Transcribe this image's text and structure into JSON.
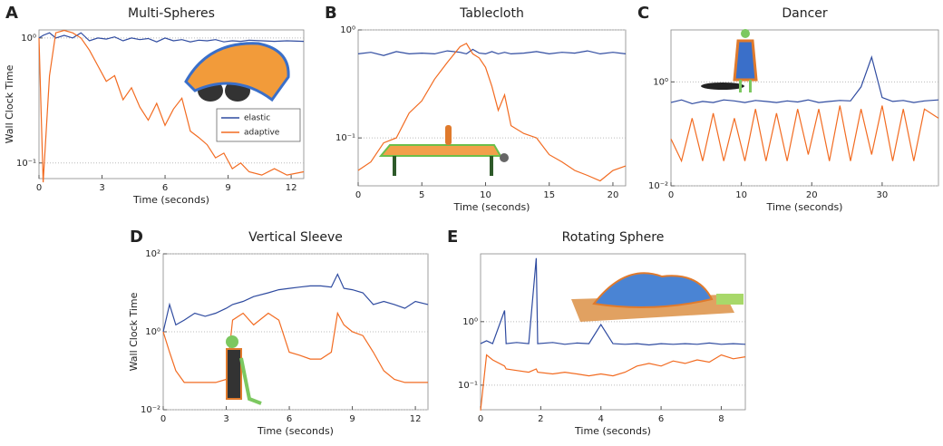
{
  "chart_data": [
    {
      "type": "line",
      "panel": "A",
      "title": "Multi-Spheres",
      "x_label": "Time (seconds)",
      "y_label": "Wall Clock Time",
      "log_y": true,
      "grid": true,
      "legend": "right",
      "xlim": [
        0,
        12.6
      ],
      "xticks": [
        0,
        3,
        6,
        9,
        12
      ],
      "ylim": [
        0.075,
        1.16
      ],
      "yticks": [
        {
          "value": 0.1,
          "label": "10⁻¹"
        },
        {
          "value": 1,
          "label": "10⁰"
        }
      ],
      "x": [
        0,
        0.2,
        0.5,
        0.8,
        1.2,
        1.6,
        2,
        2.4,
        2.8,
        3.2,
        3.6,
        4,
        4.4,
        4.8,
        5.2,
        5.6,
        6,
        6.4,
        6.8,
        7.2,
        7.6,
        8,
        8.4,
        8.8,
        9.2,
        9.6,
        10,
        10.6,
        11.2,
        11.8,
        12.6
      ],
      "series": [
        {
          "name": "elastic",
          "color": "#2f4ba0",
          "values": [
            1.0,
            1.05,
            1.1,
            1.0,
            1.05,
            1.0,
            1.1,
            0.95,
            1.0,
            0.98,
            1.02,
            0.95,
            1.0,
            0.97,
            0.99,
            0.93,
            1.0,
            0.95,
            0.97,
            0.93,
            0.96,
            0.95,
            0.97,
            0.93,
            0.95,
            0.94,
            0.96,
            0.95,
            0.94,
            0.95,
            0.94
          ]
        },
        {
          "name": "adaptive",
          "color": "#f26b21",
          "values": [
            1.0,
            0.07,
            0.5,
            1.1,
            1.15,
            1.1,
            1.0,
            0.8,
            0.6,
            0.45,
            0.5,
            0.32,
            0.4,
            0.28,
            0.22,
            0.3,
            0.2,
            0.27,
            0.33,
            0.18,
            0.16,
            0.14,
            0.11,
            0.12,
            0.09,
            0.1,
            0.085,
            0.08,
            0.09,
            0.08,
            0.085
          ]
        }
      ]
    },
    {
      "type": "line",
      "panel": "B",
      "title": "Tablecloth",
      "x_label": "Time (seconds)",
      "log_y": true,
      "grid": true,
      "xlim": [
        0,
        21
      ],
      "xticks": [
        0,
        5,
        10,
        15,
        20
      ],
      "ylim": [
        0.036,
        1
      ],
      "yticks": [
        {
          "value": 0.1,
          "label": "10⁻¹"
        },
        {
          "value": 1,
          "label": "10⁰"
        }
      ],
      "x": [
        0,
        1,
        2,
        3,
        4,
        5,
        6,
        7,
        8,
        8.5,
        9,
        9.5,
        10,
        10.5,
        11,
        11.5,
        12,
        13,
        14,
        15,
        16,
        17,
        18,
        19,
        20,
        21
      ],
      "series": [
        {
          "color": "#2f4ba0",
          "values": [
            0.6,
            0.62,
            0.58,
            0.63,
            0.6,
            0.61,
            0.6,
            0.64,
            0.62,
            0.6,
            0.66,
            0.61,
            0.6,
            0.63,
            0.6,
            0.62,
            0.6,
            0.61,
            0.63,
            0.6,
            0.62,
            0.61,
            0.64,
            0.6,
            0.62,
            0.6
          ]
        },
        {
          "color": "#f26b21",
          "values": [
            0.05,
            0.06,
            0.09,
            0.1,
            0.17,
            0.22,
            0.35,
            0.5,
            0.7,
            0.75,
            0.6,
            0.55,
            0.45,
            0.3,
            0.18,
            0.25,
            0.13,
            0.11,
            0.1,
            0.07,
            0.06,
            0.05,
            0.045,
            0.04,
            0.05,
            0.055
          ]
        }
      ]
    },
    {
      "type": "line",
      "panel": "C",
      "title": "Dancer",
      "x_label": "Time (seconds)",
      "log_y": true,
      "grid": true,
      "xlim": [
        0,
        38
      ],
      "xticks": [
        0,
        10,
        20,
        30
      ],
      "ylim": [
        0.01,
        10
      ],
      "yticks": [
        {
          "value": 0.01,
          "label": "10⁻²"
        },
        {
          "value": 1,
          "label": "10⁰"
        }
      ],
      "x": [
        0,
        1.5,
        3,
        4.5,
        6,
        7.5,
        9,
        10.5,
        12,
        13.5,
        15,
        16.5,
        18,
        19.5,
        21,
        22.5,
        24,
        25.5,
        27,
        28.5,
        30,
        31.5,
        33,
        34.5,
        36,
        38
      ],
      "series": [
        {
          "color": "#2f4ba0",
          "values": [
            0.4,
            0.45,
            0.38,
            0.42,
            0.4,
            0.45,
            0.43,
            0.4,
            0.44,
            0.42,
            0.4,
            0.43,
            0.41,
            0.45,
            0.4,
            0.42,
            0.44,
            0.43,
            0.8,
            3.0,
            0.5,
            0.42,
            0.44,
            0.4,
            0.43,
            0.45
          ]
        },
        {
          "color": "#f26b21",
          "values": [
            0.08,
            0.03,
            0.2,
            0.03,
            0.25,
            0.03,
            0.2,
            0.03,
            0.3,
            0.03,
            0.25,
            0.03,
            0.3,
            0.04,
            0.3,
            0.03,
            0.35,
            0.03,
            0.3,
            0.04,
            0.35,
            0.03,
            0.3,
            0.03,
            0.3,
            0.2
          ]
        }
      ]
    },
    {
      "type": "line",
      "panel": "D",
      "title": "Vertical Sleeve",
      "x_label": "Time (seconds)",
      "y_label": "Wall Clock Time",
      "log_y": true,
      "grid": true,
      "xlim": [
        0,
        12.6
      ],
      "xticks": [
        0,
        3,
        6,
        9,
        12
      ],
      "ylim": [
        0.01,
        100
      ],
      "yticks": [
        {
          "value": 0.01,
          "label": "10⁻²"
        },
        {
          "value": 1,
          "label": "10⁰"
        },
        {
          "value": 100,
          "label": "10²"
        }
      ],
      "x": [
        0,
        0.3,
        0.6,
        1,
        1.5,
        2,
        2.5,
        3,
        3.3,
        3.8,
        4.3,
        5,
        5.5,
        6,
        6.5,
        7,
        7.5,
        8,
        8.3,
        8.6,
        9,
        9.5,
        10,
        10.5,
        11,
        11.5,
        12,
        12.6
      ],
      "series": [
        {
          "color": "#2f4ba0",
          "values": [
            1,
            5,
            1.5,
            2,
            3,
            2.5,
            3,
            4,
            5,
            6,
            8,
            10,
            12,
            13,
            14,
            15,
            15,
            14,
            30,
            13,
            12,
            10,
            5,
            6,
            5,
            4,
            6,
            5
          ]
        },
        {
          "color": "#f26b21",
          "values": [
            1,
            0.3,
            0.1,
            0.05,
            0.05,
            0.05,
            0.05,
            0.06,
            2,
            3,
            1.5,
            3,
            2,
            0.3,
            0.25,
            0.2,
            0.2,
            0.3,
            3,
            1.5,
            1,
            0.8,
            0.3,
            0.1,
            0.06,
            0.05,
            0.05,
            0.05
          ]
        }
      ]
    },
    {
      "type": "line",
      "panel": "E",
      "title": "Rotating Sphere",
      "x_label": "Time (seconds)",
      "log_y": true,
      "grid": true,
      "xlim": [
        0,
        8.8
      ],
      "xticks": [
        0,
        2,
        4,
        6,
        8
      ],
      "ylim": [
        0.041,
        11.7
      ],
      "yticks": [
        {
          "value": 0.1,
          "label": "10⁻¹"
        },
        {
          "value": 1,
          "label": "10⁰"
        }
      ],
      "x": [
        0,
        0.2,
        0.4,
        0.8,
        0.85,
        1.2,
        1.6,
        1.85,
        1.9,
        2.4,
        2.8,
        3.2,
        3.6,
        4,
        4.4,
        4.8,
        5.2,
        5.6,
        6,
        6.4,
        6.8,
        7.2,
        7.6,
        8,
        8.4,
        8.8
      ],
      "series": [
        {
          "color": "#2f4ba0",
          "values": [
            0.45,
            0.5,
            0.45,
            1.5,
            0.45,
            0.47,
            0.45,
            10,
            0.45,
            0.47,
            0.44,
            0.46,
            0.45,
            0.9,
            0.45,
            0.44,
            0.45,
            0.43,
            0.45,
            0.44,
            0.45,
            0.44,
            0.46,
            0.44,
            0.45,
            0.44
          ]
        },
        {
          "color": "#f26b21",
          "values": [
            0.04,
            0.3,
            0.25,
            0.2,
            0.18,
            0.17,
            0.16,
            0.18,
            0.16,
            0.15,
            0.16,
            0.15,
            0.14,
            0.15,
            0.14,
            0.16,
            0.2,
            0.22,
            0.2,
            0.24,
            0.22,
            0.25,
            0.23,
            0.3,
            0.26,
            0.28
          ]
        }
      ]
    }
  ]
}
